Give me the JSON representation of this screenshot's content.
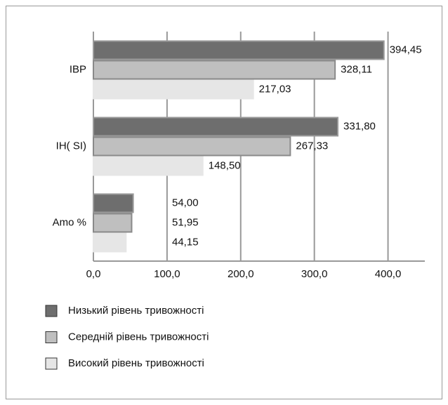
{
  "chart_data": {
    "type": "bar",
    "orientation": "horizontal",
    "categories": [
      "IBP",
      "IH( SI)",
      "Amo %"
    ],
    "series": [
      {
        "name": "Низький рівень тривожності",
        "color": "#6e6e6e",
        "values": [
          394.45,
          331.8,
          54.0
        ],
        "value_labels": [
          "394,45",
          "331,80",
          "54,00"
        ]
      },
      {
        "name": "Середній рівень тривожності",
        "color": "#bfbfbf",
        "values": [
          328.11,
          267.33,
          51.95
        ],
        "value_labels": [
          "328,11",
          "267,33",
          "51,95"
        ]
      },
      {
        "name": "Високий рівень тривожності",
        "color": "#e6e6e6",
        "values": [
          217.03,
          148.5,
          44.15
        ],
        "value_labels": [
          "217,03",
          "148,50",
          "44,15"
        ]
      }
    ],
    "xlim": [
      0,
      450
    ],
    "xticks": [
      {
        "value": 0,
        "label": "0,0"
      },
      {
        "value": 100,
        "label": "100,0"
      },
      {
        "value": 200,
        "label": "200,0"
      },
      {
        "value": 300,
        "label": "300,0"
      },
      {
        "value": 400,
        "label": "400,0"
      }
    ],
    "grid": true
  }
}
